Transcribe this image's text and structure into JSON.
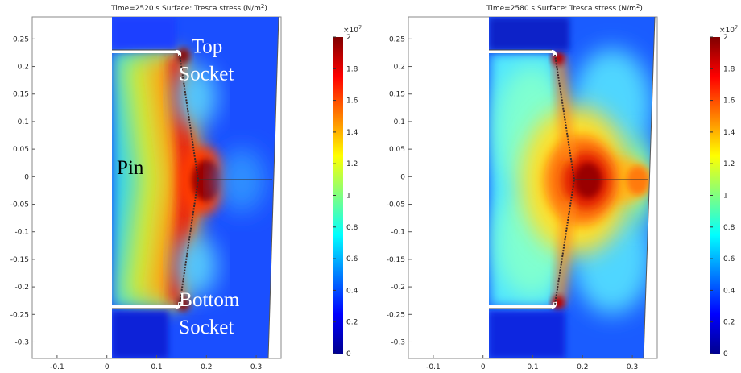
{
  "chart_data": [
    {
      "type": "heatmap",
      "title": "Time=2520 s   Surface: Tresca stress (N/m",
      "title_sup": "2",
      "title_end": ")",
      "xlim": [
        -0.15,
        0.35
      ],
      "ylim": [
        -0.33,
        0.29
      ],
      "x_ticks": [
        "-0.1",
        "0",
        "0.1",
        "0.2",
        "0.3"
      ],
      "x_tick_values": [
        -0.1,
        0,
        0.1,
        0.2,
        0.3
      ],
      "y_ticks": [
        "0.25",
        "0.2",
        "0.15",
        "0.1",
        "0.05",
        "0",
        "-0.05",
        "-0.1",
        "-0.15",
        "-0.2",
        "-0.25",
        "-0.3"
      ],
      "y_tick_values": [
        0.25,
        0.2,
        0.15,
        0.1,
        0.05,
        0,
        -0.05,
        -0.1,
        -0.15,
        -0.2,
        -0.25,
        -0.3
      ],
      "colorbar": {
        "multiplier": "×10",
        "multiplier_exp": "7",
        "range": [
          0,
          2
        ],
        "ticks": [
          "2",
          "1.8",
          "1.6",
          "1.4",
          "1.2",
          "1",
          "0.8",
          "0.6",
          "0.4",
          "0.2",
          "0"
        ],
        "tick_values": [
          2,
          1.8,
          1.6,
          1.4,
          1.2,
          1,
          0.8,
          0.6,
          0.4,
          0.2,
          0
        ]
      },
      "annotations": [
        {
          "text": "Top",
          "x": 0.17,
          "y": 0.225,
          "color": "#ffffff"
        },
        {
          "text": "Socket",
          "x": 0.145,
          "y": 0.175,
          "color": "#ffffff"
        },
        {
          "text": "Pin",
          "x": 0.02,
          "y": 0.005,
          "color": "#000000"
        },
        {
          "text": "Bottom",
          "x": 0.145,
          "y": -0.235,
          "color": "#ffffff"
        },
        {
          "text": "Socket",
          "x": 0.145,
          "y": -0.285,
          "color": "#ffffff"
        }
      ]
    },
    {
      "type": "heatmap",
      "title": "Time=2580 s   Surface: Tresca stress (N/m",
      "title_sup": "2",
      "title_end": ")",
      "xlim": [
        -0.15,
        0.35
      ],
      "ylim": [
        -0.33,
        0.29
      ],
      "x_ticks": [
        "-0.1",
        "0",
        "0.1",
        "0.2",
        "0.3"
      ],
      "x_tick_values": [
        -0.1,
        0,
        0.1,
        0.2,
        0.3
      ],
      "y_ticks": [
        "0.25",
        "0.2",
        "0.15",
        "0.1",
        "0.05",
        "0",
        "-0.05",
        "-0.1",
        "-0.15",
        "-0.2",
        "-0.25",
        "-0.3"
      ],
      "y_tick_values": [
        0.25,
        0.2,
        0.15,
        0.1,
        0.05,
        0,
        -0.05,
        -0.1,
        -0.15,
        -0.2,
        -0.25,
        -0.3
      ],
      "colorbar": {
        "multiplier": "×10",
        "multiplier_exp": "7",
        "range": [
          0,
          2
        ],
        "ticks": [
          "2",
          "1.8",
          "1.6",
          "1.4",
          "1.2",
          "1",
          "0.8",
          "0.6",
          "0.4",
          "0.2",
          "0"
        ],
        "tick_values": [
          2,
          1.8,
          1.6,
          1.4,
          1.2,
          1,
          0.8,
          0.6,
          0.4,
          0.2,
          0
        ]
      },
      "annotations": []
    }
  ]
}
